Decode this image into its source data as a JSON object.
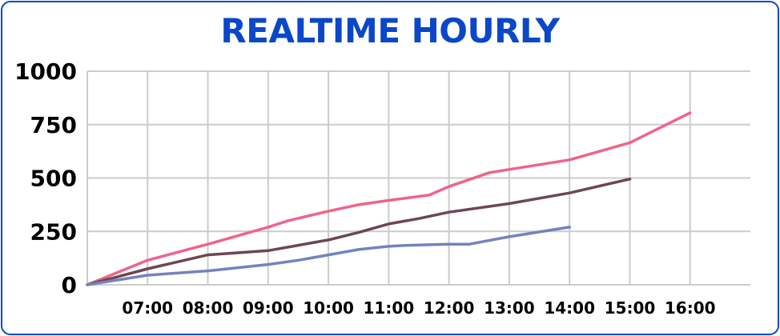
{
  "chart_data": {
    "type": "line",
    "title": "REALTIME HOURLY",
    "xlabel": "",
    "ylabel": "",
    "x_ticks": [
      "07:00",
      "08:00",
      "09:00",
      "10:00",
      "11:00",
      "12:00",
      "13:00",
      "14:00",
      "15:00",
      "16:00"
    ],
    "y_ticks": [
      "0",
      "250",
      "500",
      "750",
      "1000"
    ],
    "ylim": [
      0,
      1000
    ],
    "xlim": [
      6.0,
      17.0
    ],
    "grid": true,
    "series": [
      {
        "color": "#f06389",
        "points": [
          [
            6.0,
            0
          ],
          [
            7.0,
            115
          ],
          [
            8.0,
            190
          ],
          [
            9.0,
            270
          ],
          [
            9.33,
            300
          ],
          [
            10.0,
            345
          ],
          [
            10.5,
            375
          ],
          [
            11.0,
            395
          ],
          [
            11.67,
            420
          ],
          [
            12.0,
            460
          ],
          [
            12.67,
            525
          ],
          [
            13.0,
            540
          ],
          [
            14.0,
            585
          ],
          [
            15.0,
            665
          ],
          [
            16.0,
            805
          ]
        ]
      },
      {
        "color": "#6e4652",
        "points": [
          [
            6.0,
            0
          ],
          [
            7.0,
            75
          ],
          [
            8.0,
            140
          ],
          [
            9.0,
            160
          ],
          [
            9.5,
            185
          ],
          [
            10.0,
            210
          ],
          [
            10.5,
            245
          ],
          [
            11.0,
            285
          ],
          [
            11.5,
            310
          ],
          [
            12.0,
            340
          ],
          [
            13.0,
            380
          ],
          [
            14.0,
            430
          ],
          [
            15.0,
            495
          ]
        ]
      },
      {
        "color": "#7383bf",
        "points": [
          [
            6.0,
            0
          ],
          [
            7.0,
            45
          ],
          [
            8.0,
            65
          ],
          [
            9.0,
            95
          ],
          [
            9.5,
            115
          ],
          [
            10.0,
            140
          ],
          [
            10.5,
            165
          ],
          [
            11.0,
            180
          ],
          [
            11.33,
            185
          ],
          [
            12.0,
            190
          ],
          [
            12.33,
            190
          ],
          [
            13.0,
            225
          ],
          [
            14.0,
            270
          ]
        ]
      }
    ]
  }
}
